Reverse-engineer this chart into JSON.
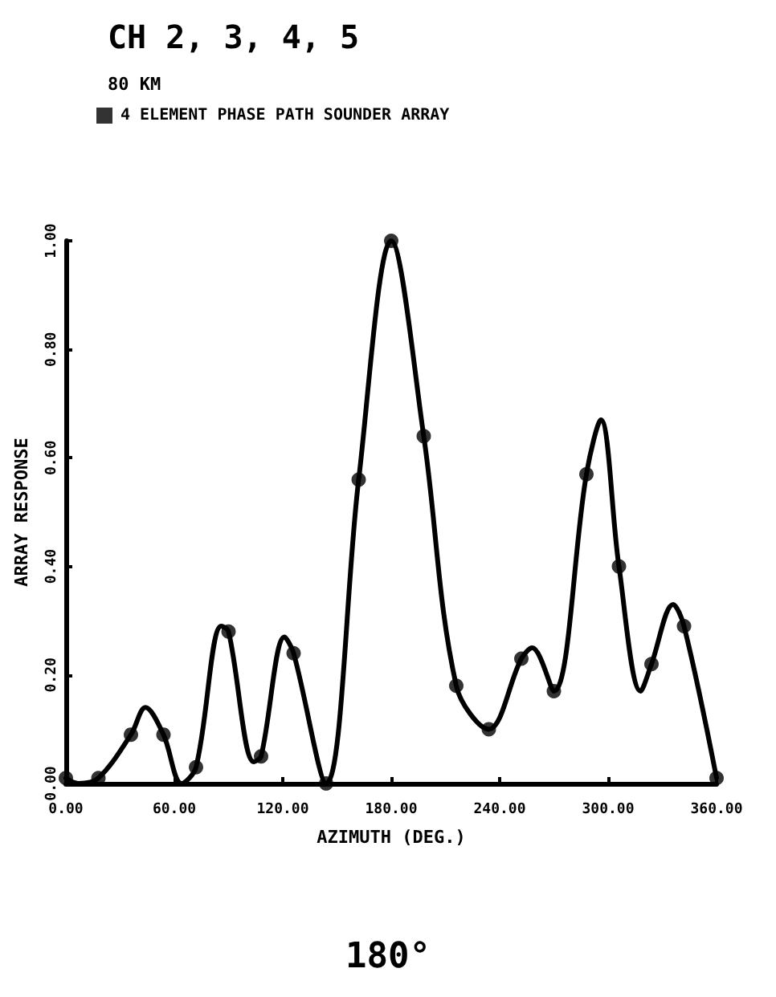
{
  "chart_data": {
    "type": "line",
    "title": "CH 2, 3, 4, 5",
    "subtitle": "80 KM",
    "xlabel": "AZIMUTH (DEG.)",
    "ylabel": "ARRAY RESPONSE",
    "annotations": [
      "180°"
    ],
    "series": [
      {
        "color": "#000000",
        "marker": "none",
        "x": [
          0,
          7,
          18,
          36,
          44,
          54,
          64,
          72,
          86,
          90,
          104,
          108,
          121,
          126,
          144,
          162,
          180,
          198,
          216,
          234,
          252,
          258,
          270,
          288,
          296,
          306,
          318,
          324,
          336,
          342,
          360
        ],
        "values": [
          0.01,
          0,
          0.01,
          0.09,
          0.14,
          0.09,
          0,
          0.03,
          0.29,
          0.28,
          0.04,
          0.05,
          0.27,
          0.24,
          0,
          0.56,
          1.0,
          0.64,
          0.18,
          0.1,
          0.23,
          0.25,
          0.17,
          0.57,
          0.67,
          0.4,
          0.17,
          0.22,
          0.33,
          0.29,
          0.01
        ]
      },
      {
        "type": "scatter",
        "name": "4 ELEMENT PHASE PATH SOUNDER ARRAY",
        "color": "#000000",
        "marker": "circle",
        "x": [
          0,
          18,
          36,
          54,
          72,
          90,
          108,
          126,
          144,
          162,
          180,
          198,
          216,
          234,
          252,
          270,
          288,
          306,
          324,
          342,
          360
        ],
        "values": [
          0.01,
          0.01,
          0.09,
          0.09,
          0.03,
          0.28,
          0.05,
          0.24,
          0,
          0.56,
          1.0,
          0.64,
          0.18,
          0.1,
          0.23,
          0.17,
          0.57,
          0.4,
          0.22,
          0.29,
          0.01
        ]
      }
    ],
    "xlim": [
      0,
      360
    ],
    "xticks": [
      {
        "value": 0,
        "label": "0.00"
      },
      {
        "value": 60,
        "label": "60.00"
      },
      {
        "value": 120,
        "label": "120.00"
      },
      {
        "value": 180,
        "label": "180.00"
      },
      {
        "value": 240,
        "label": "240.00"
      },
      {
        "value": 300,
        "label": "300.00"
      },
      {
        "value": 360,
        "label": "360.00"
      }
    ],
    "ylim": [
      0,
      1
    ],
    "yticks": [
      {
        "value": 0,
        "label": "0.00"
      },
      {
        "value": 0.2,
        "label": "0.20"
      },
      {
        "value": 0.4,
        "label": "0.40"
      },
      {
        "value": 0.6,
        "label": "0.60"
      },
      {
        "value": 0.8,
        "label": "0.80"
      },
      {
        "value": 1,
        "label": "1.00"
      }
    ],
    "grid": false,
    "legend": "top left"
  }
}
